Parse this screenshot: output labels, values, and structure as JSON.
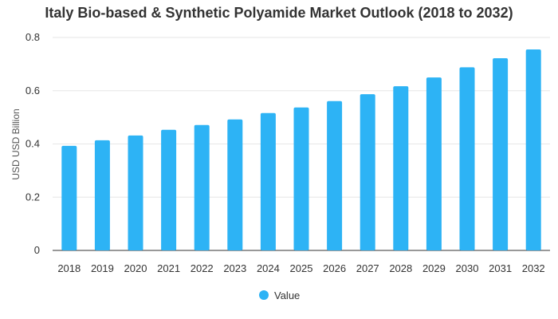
{
  "chart_data": {
    "type": "bar",
    "title": "Italy Bio-based & Synthetic Polyamide Market Outlook (2018 to 2032)",
    "xlabel": "",
    "ylabel": "USD USD Billion",
    "ylim": [
      0,
      0.8
    ],
    "yticks": [
      "0",
      "0.2",
      "0.4",
      "0.6",
      "0.8"
    ],
    "categories": [
      "2018",
      "2019",
      "2020",
      "2021",
      "2022",
      "2023",
      "2024",
      "2025",
      "2026",
      "2027",
      "2028",
      "2029",
      "2030",
      "2031",
      "2032"
    ],
    "series": [
      {
        "name": "Value",
        "color": "#2db3f5",
        "values": [
          0.393,
          0.414,
          0.432,
          0.453,
          0.471,
          0.492,
          0.516,
          0.537,
          0.561,
          0.587,
          0.617,
          0.65,
          0.688,
          0.722,
          0.755
        ]
      }
    ],
    "grid": true,
    "legend": "bottom-center"
  }
}
